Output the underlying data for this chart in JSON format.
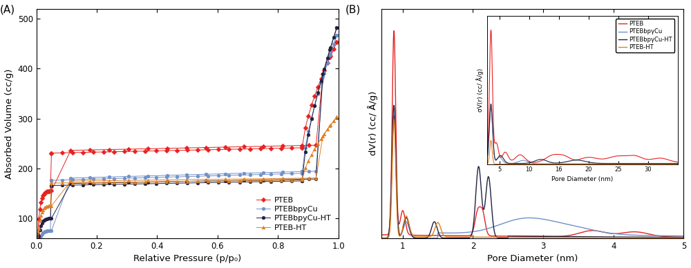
{
  "panel_A_label": "(A)",
  "panel_B_label": "(B)",
  "xlabel_A": "Relative Pressure (p/p₀)",
  "ylabel_A": "Absorbed Volume (cc/g)",
  "xlabel_B": "Pore Diameter (nm)",
  "ylabel_B": "dV(r) (cc/ Å/g)",
  "ylabel_inset": "σV(r) (cc/ Å/g)",
  "xlabel_inset": "Pore Diameter (nm)",
  "colors": {
    "PTEB": "#e82020",
    "PTEBbpyCu": "#7090c8",
    "PTEBbpyCu_HT": "#202040",
    "PTEB_HT": "#e08020"
  },
  "legend_labels_A": [
    "PTEB",
    "PTEBbpyCu",
    "PTEBbpyCu-HT",
    "PTEB-HT"
  ],
  "legend_labels_inset": [
    "PTEB",
    "PTEBbpγCu",
    "PTEBbpγCu-HT",
    "PTEB-HT"
  ],
  "ylim_A": [
    60,
    520
  ],
  "xlim_A": [
    0.0,
    1.0
  ],
  "xlim_B": [
    0.7,
    5.0
  ]
}
